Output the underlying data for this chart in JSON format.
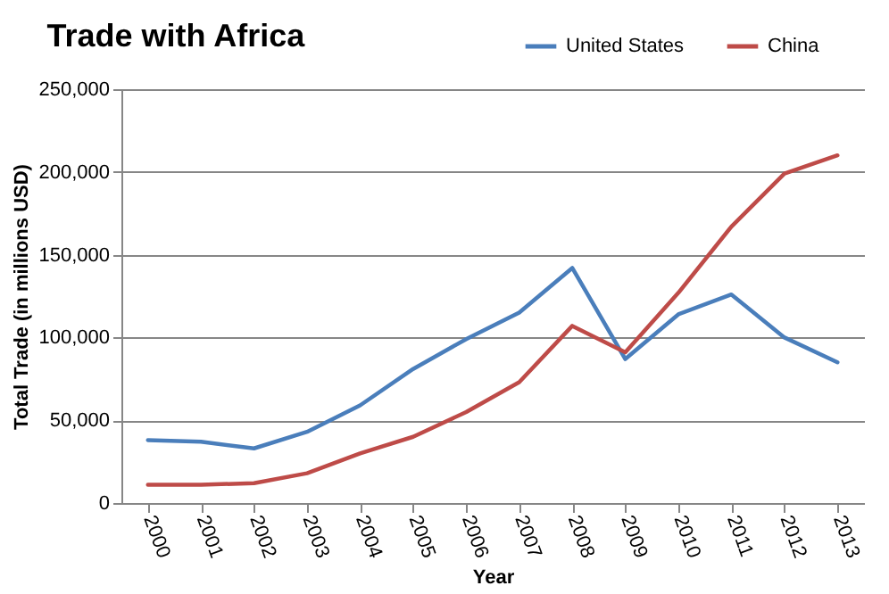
{
  "chart_data": {
    "type": "line",
    "title": "Trade with Africa",
    "xlabel": "Year",
    "ylabel": "Total Trade (in millions USD)",
    "categories": [
      "2000",
      "2001",
      "2002",
      "2003",
      "2004",
      "2005",
      "2006",
      "2007",
      "2008",
      "2009",
      "2010",
      "2011",
      "2012",
      "2013"
    ],
    "series": [
      {
        "name": "United States",
        "color": "#4a7ebb",
        "values": [
          38000,
          37000,
          33000,
          43000,
          59000,
          81000,
          99000,
          115000,
          142000,
          87000,
          114000,
          126000,
          100000,
          85000
        ]
      },
      {
        "name": "China",
        "color": "#be4b48",
        "values": [
          11000,
          11000,
          12000,
          18000,
          30000,
          40000,
          55000,
          73000,
          107000,
          91000,
          127000,
          167000,
          199000,
          210000
        ]
      }
    ],
    "ylim": [
      0,
      250000
    ],
    "yticks": [
      0,
      {
        "value": 50000,
        "label": "50,000"
      },
      {
        "value": 100000,
        "label": "100,000"
      },
      {
        "value": 150000,
        "label": "150,000"
      },
      {
        "value": 200000,
        "label": "200,000"
      },
      {
        "value": 250000,
        "label": "250,000"
      }
    ],
    "grid": "y",
    "legend": "top right",
    "marker": "none",
    "line_style": "solid"
  }
}
